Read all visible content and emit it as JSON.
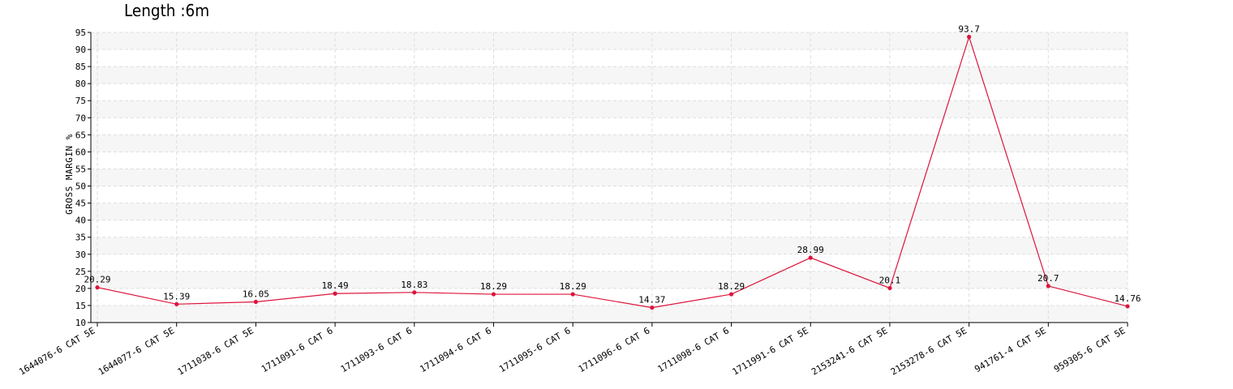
{
  "chart_data": {
    "type": "line",
    "title": "Length :6m",
    "xlabel": "",
    "ylabel": "GROSS MARGIN %",
    "ylim": [
      10,
      95
    ],
    "ytick_step": 5,
    "grid": true,
    "legend": "none",
    "categories": [
      "1644076-6 CAT 5E",
      "1644077-6 CAT 5E",
      "1711038-6 CAT 5E",
      "1711091-6 CAT 6",
      "1711093-6 CAT 6",
      "1711094-6 CAT 6",
      "1711095-6 CAT 6",
      "1711096-6 CAT 6",
      "1711098-6 CAT 6",
      "1711991-6 CAT 5E",
      "2153241-6 CAT 5E",
      "2153278-6 CAT 5E",
      "941761-4 CAT 5E",
      "959305-6 CAT 5E"
    ],
    "series": [
      {
        "color": "#dc143c",
        "values": [
          20.29,
          15.39,
          16.05,
          18.49,
          18.83,
          18.29,
          18.29,
          14.37,
          18.29,
          28.99,
          20.1,
          93.7,
          20.7,
          14.76
        ]
      }
    ]
  }
}
